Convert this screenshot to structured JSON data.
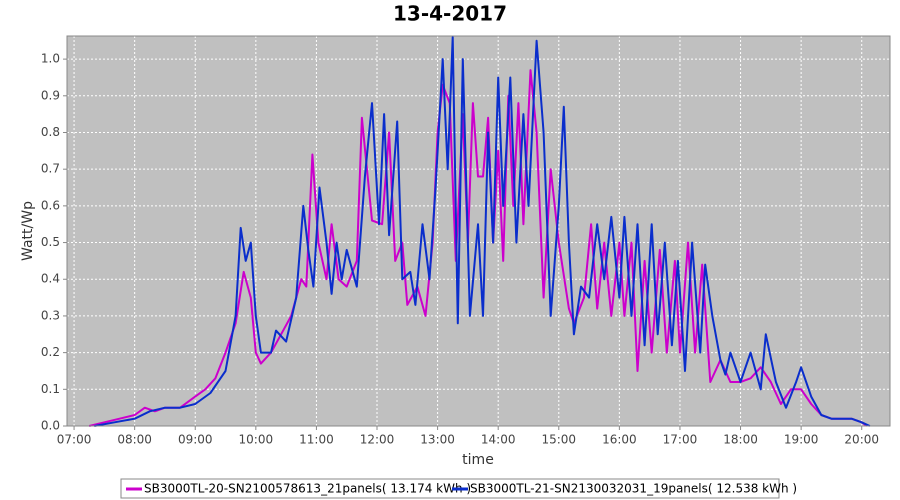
{
  "chart_data": {
    "type": "line",
    "title": "13-4-2017",
    "xlabel": "time",
    "ylabel": "Watt/Wp",
    "xlim": [
      "06:53",
      "20:28"
    ],
    "ylim": [
      0,
      1.063
    ],
    "xticks": [
      "07:00",
      "08:00",
      "09:00",
      "10:00",
      "11:00",
      "12:00",
      "13:00",
      "14:00",
      "15:00",
      "16:00",
      "17:00",
      "18:00",
      "19:00",
      "20:00"
    ],
    "yticks": [
      {
        "value": 0,
        "label": "0.0"
      },
      0.1,
      0.2,
      0.3,
      0.4,
      0.5,
      0.6,
      0.7,
      0.8,
      0.9,
      {
        "value": 1,
        "label": "1.0"
      }
    ],
    "grid": true,
    "legend": "bottom",
    "series": [
      {
        "name": "SB3000TL-20-SN2100578613_21panels( 13.174 kWh )",
        "color": "#cc00cc",
        "x": [
          "07:15",
          "07:30",
          "07:45",
          "08:00",
          "08:10",
          "08:20",
          "08:30",
          "08:45",
          "09:00",
          "09:10",
          "09:20",
          "09:30",
          "09:40",
          "09:48",
          "09:55",
          "10:00",
          "10:05",
          "10:15",
          "10:25",
          "10:35",
          "10:45",
          "10:50",
          "10:56",
          "11:02",
          "11:10",
          "11:15",
          "11:22",
          "11:30",
          "11:40",
          "11:45",
          "11:55",
          "12:05",
          "12:12",
          "12:18",
          "12:25",
          "12:30",
          "12:40",
          "12:48",
          "12:55",
          "13:00",
          "13:05",
          "13:12",
          "13:18",
          "13:25",
          "13:30",
          "13:35",
          "13:40",
          "13:45",
          "13:50",
          "13:55",
          "14:00",
          "14:05",
          "14:10",
          "14:15",
          "14:20",
          "14:25",
          "14:32",
          "14:38",
          "14:45",
          "14:52",
          "15:00",
          "15:10",
          "15:15",
          "15:25",
          "15:32",
          "15:38",
          "15:45",
          "15:52",
          "16:00",
          "16:05",
          "16:12",
          "16:18",
          "16:25",
          "16:32",
          "16:40",
          "16:47",
          "16:55",
          "17:00",
          "17:08",
          "17:15",
          "17:22",
          "17:30",
          "17:40",
          "17:50",
          "18:00",
          "18:10",
          "18:20",
          "18:30",
          "18:40",
          "18:50",
          "19:00",
          "19:10",
          "19:20",
          "19:30",
          "19:40",
          "19:50",
          "20:00",
          "20:05"
        ],
        "values": [
          0.0,
          0.01,
          0.02,
          0.03,
          0.05,
          0.04,
          0.05,
          0.05,
          0.08,
          0.1,
          0.13,
          0.2,
          0.28,
          0.42,
          0.35,
          0.2,
          0.17,
          0.2,
          0.25,
          0.3,
          0.4,
          0.38,
          0.74,
          0.5,
          0.4,
          0.55,
          0.4,
          0.38,
          0.45,
          0.84,
          0.56,
          0.55,
          0.8,
          0.45,
          0.5,
          0.33,
          0.38,
          0.3,
          0.5,
          0.8,
          0.93,
          0.88,
          0.45,
          0.85,
          0.5,
          0.88,
          0.68,
          0.68,
          0.84,
          0.5,
          0.75,
          0.45,
          0.9,
          0.6,
          0.88,
          0.55,
          0.97,
          0.8,
          0.35,
          0.7,
          0.5,
          0.32,
          0.28,
          0.35,
          0.55,
          0.32,
          0.5,
          0.3,
          0.5,
          0.3,
          0.5,
          0.15,
          0.45,
          0.2,
          0.48,
          0.2,
          0.45,
          0.2,
          0.5,
          0.2,
          0.44,
          0.12,
          0.18,
          0.12,
          0.12,
          0.13,
          0.16,
          0.12,
          0.06,
          0.1,
          0.1,
          0.06,
          0.03,
          0.02,
          0.02,
          0.02,
          0.01,
          0.0
        ]
      },
      {
        "name": "SB3000TL-21-SN2130032031_19panels( 12.538 kWh )",
        "color": "#0a2ecc",
        "x": [
          "07:20",
          "07:40",
          "08:00",
          "08:15",
          "08:30",
          "08:45",
          "09:00",
          "09:15",
          "09:30",
          "09:40",
          "09:45",
          "09:50",
          "09:55",
          "10:00",
          "10:05",
          "10:15",
          "10:20",
          "10:30",
          "10:40",
          "10:47",
          "10:52",
          "10:57",
          "11:03",
          "11:10",
          "11:15",
          "11:20",
          "11:25",
          "11:30",
          "11:40",
          "11:48",
          "11:55",
          "12:02",
          "12:07",
          "12:12",
          "12:20",
          "12:25",
          "12:33",
          "12:38",
          "12:45",
          "12:52",
          "12:58",
          "13:05",
          "13:10",
          "13:15",
          "13:20",
          "13:25",
          "13:32",
          "13:40",
          "13:45",
          "13:50",
          "13:55",
          "14:00",
          "14:05",
          "14:12",
          "14:18",
          "14:25",
          "14:30",
          "14:38",
          "14:45",
          "14:52",
          "15:00",
          "15:05",
          "15:10",
          "15:15",
          "15:22",
          "15:30",
          "15:38",
          "15:45",
          "15:52",
          "16:00",
          "16:05",
          "16:12",
          "16:18",
          "16:25",
          "16:32",
          "16:38",
          "16:45",
          "16:52",
          "16:58",
          "17:05",
          "17:12",
          "17:20",
          "17:25",
          "17:32",
          "17:40",
          "17:45",
          "17:50",
          "18:00",
          "18:10",
          "18:20",
          "18:25",
          "18:35",
          "18:45",
          "18:55",
          "19:00",
          "19:10",
          "19:20",
          "19:30",
          "19:40",
          "19:50",
          "20:00",
          "20:08"
        ],
        "values": [
          0.0,
          0.01,
          0.02,
          0.04,
          0.05,
          0.05,
          0.06,
          0.09,
          0.15,
          0.3,
          0.54,
          0.45,
          0.5,
          0.3,
          0.2,
          0.2,
          0.26,
          0.23,
          0.35,
          0.6,
          0.48,
          0.38,
          0.65,
          0.5,
          0.36,
          0.5,
          0.4,
          0.48,
          0.38,
          0.68,
          0.88,
          0.55,
          0.85,
          0.52,
          0.83,
          0.4,
          0.42,
          0.33,
          0.55,
          0.4,
          0.65,
          1.0,
          0.7,
          1.06,
          0.28,
          1.0,
          0.3,
          0.55,
          0.3,
          0.8,
          0.5,
          0.95,
          0.6,
          0.95,
          0.5,
          0.85,
          0.6,
          1.05,
          0.8,
          0.3,
          0.6,
          0.87,
          0.5,
          0.25,
          0.38,
          0.35,
          0.55,
          0.4,
          0.57,
          0.35,
          0.57,
          0.3,
          0.55,
          0.22,
          0.55,
          0.25,
          0.5,
          0.22,
          0.45,
          0.15,
          0.5,
          0.2,
          0.44,
          0.3,
          0.18,
          0.14,
          0.2,
          0.12,
          0.2,
          0.1,
          0.25,
          0.12,
          0.05,
          0.12,
          0.16,
          0.08,
          0.03,
          0.02,
          0.02,
          0.02,
          0.01,
          0.0
        ]
      }
    ]
  }
}
